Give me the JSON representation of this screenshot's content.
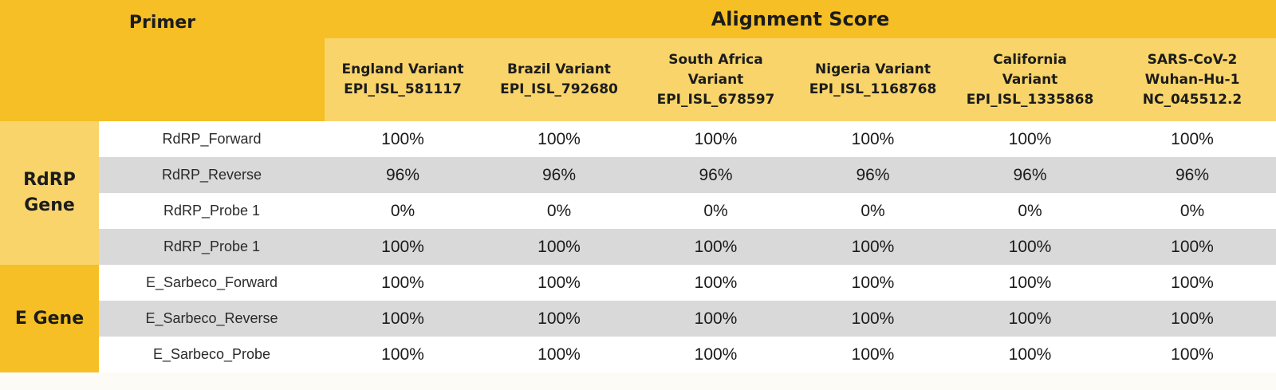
{
  "header": {
    "primer_label": "Primer",
    "alignment_label": "Alignment Score",
    "variants": [
      {
        "lines": [
          "England Variant",
          "EPI_ISL_581117"
        ]
      },
      {
        "lines": [
          "Brazil Variant",
          "EPI_ISL_792680"
        ]
      },
      {
        "lines": [
          "South Africa",
          "Variant",
          "EPI_ISL_678597"
        ]
      },
      {
        "lines": [
          "Nigeria Variant",
          "EPI_ISL_1168768"
        ]
      },
      {
        "lines": [
          "California",
          "Variant",
          "EPI_ISL_1335868"
        ]
      },
      {
        "lines": [
          "SARS-CoV-2",
          "Wuhan-Hu-1",
          "NC_045512.2"
        ]
      }
    ]
  },
  "groups": [
    {
      "gene_lines": [
        "RdRP",
        "Gene"
      ],
      "rows": [
        {
          "primer": "RdRP_Forward",
          "values": [
            "100%",
            "100%",
            "100%",
            "100%",
            "100%",
            "100%"
          ]
        },
        {
          "primer": "RdRP_Reverse",
          "values": [
            "96%",
            "96%",
            "96%",
            "96%",
            "96%",
            "96%"
          ]
        },
        {
          "primer": "RdRP_Probe 1",
          "values": [
            "0%",
            "0%",
            "0%",
            "0%",
            "0%",
            "0%"
          ]
        },
        {
          "primer": "RdRP_Probe 1",
          "values": [
            "100%",
            "100%",
            "100%",
            "100%",
            "100%",
            "100%"
          ]
        }
      ]
    },
    {
      "gene_lines": [
        "E Gene"
      ],
      "rows": [
        {
          "primer": "E_Sarbeco_Forward",
          "values": [
            "100%",
            "100%",
            "100%",
            "100%",
            "100%",
            "100%"
          ]
        },
        {
          "primer": "E_Sarbeco_Reverse",
          "values": [
            "100%",
            "100%",
            "100%",
            "100%",
            "100%",
            "100%"
          ]
        },
        {
          "primer": "E_Sarbeco_Probe",
          "values": [
            "100%",
            "100%",
            "100%",
            "100%",
            "100%",
            "100%"
          ]
        }
      ]
    }
  ],
  "colors": {
    "header_dark": "#f5bf25",
    "header_light": "#f8d46a",
    "row_gray": "#d9d9d9",
    "row_white": "#ffffff"
  }
}
